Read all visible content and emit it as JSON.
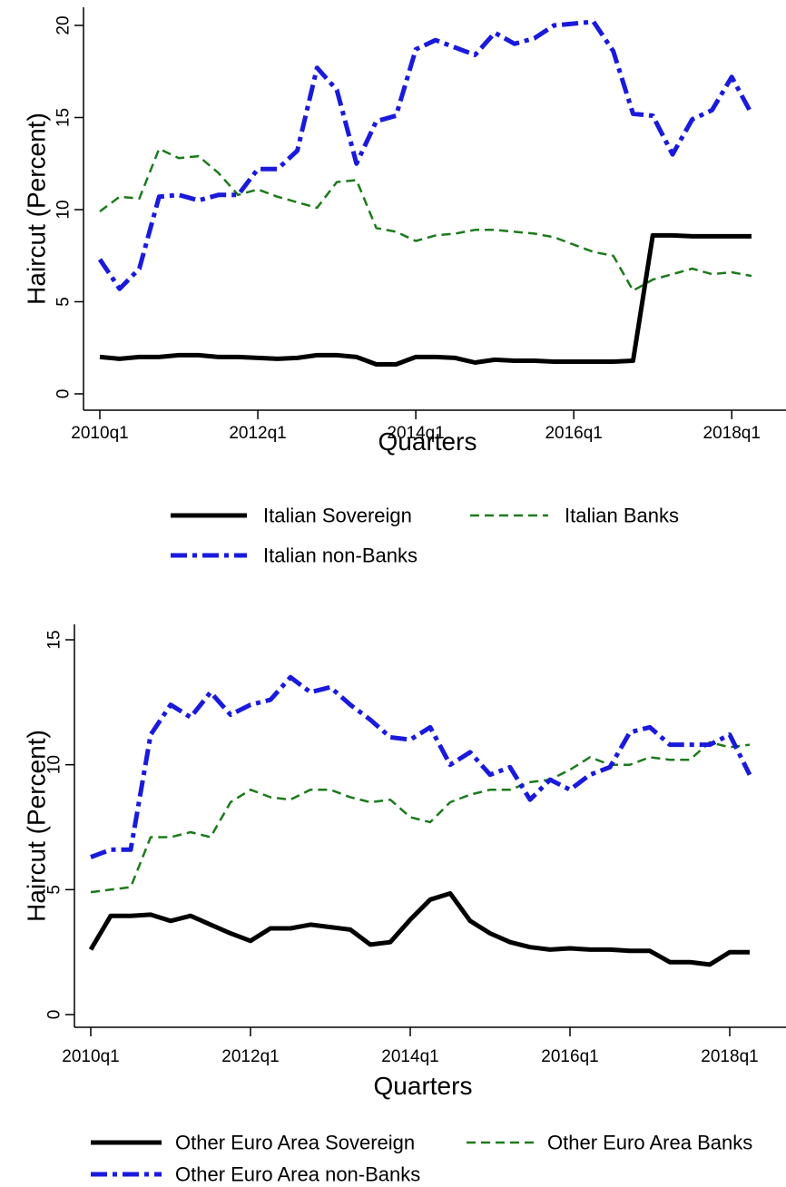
{
  "chart_data": [
    {
      "type": "line",
      "title": "",
      "xlabel": "Quarters",
      "ylabel": "Haircut (Percent)",
      "xlim": [
        "2010q1",
        "2018q2"
      ],
      "ylim": [
        0,
        20
      ],
      "yticks": [
        "0",
        "5",
        "10",
        "15",
        "20"
      ],
      "xticks": [
        "2010q1",
        "2012q1",
        "2014q1",
        "2016q1",
        "2018q1"
      ],
      "grid": false,
      "legend_position": "bottom",
      "x": [
        "2010q1",
        "2010q2",
        "2010q3",
        "2010q4",
        "2011q1",
        "2011q2",
        "2011q3",
        "2011q4",
        "2012q1",
        "2012q2",
        "2012q3",
        "2012q4",
        "2013q1",
        "2013q2",
        "2013q3",
        "2013q4",
        "2014q1",
        "2014q2",
        "2014q3",
        "2014q4",
        "2015q1",
        "2015q2",
        "2015q3",
        "2015q4",
        "2016q1",
        "2016q2",
        "2016q3",
        "2016q4",
        "2017q1",
        "2017q2",
        "2017q3",
        "2017q4",
        "2018q1",
        "2018q2"
      ],
      "series": [
        {
          "name": "Italian Sovereign",
          "color": "#000000",
          "line_style": "solid",
          "values": [
            2.0,
            1.9,
            2.0,
            2.0,
            2.1,
            2.1,
            2.0,
            2.0,
            1.95,
            1.9,
            1.95,
            2.1,
            2.1,
            2.0,
            1.6,
            1.6,
            2.0,
            2.0,
            1.95,
            1.7,
            1.85,
            1.8,
            1.8,
            1.75,
            1.75,
            1.75,
            1.75,
            1.8,
            8.6,
            8.6,
            8.55,
            8.55,
            8.55,
            8.55
          ]
        },
        {
          "name": "Italian Banks",
          "color": "#1a7a1a",
          "line_style": "dashed",
          "values": [
            9.9,
            10.7,
            10.6,
            13.3,
            12.8,
            12.9,
            12.0,
            10.8,
            11.1,
            10.7,
            10.4,
            10.1,
            11.5,
            11.6,
            9.0,
            8.8,
            8.3,
            8.6,
            8.7,
            8.9,
            8.9,
            8.8,
            8.7,
            8.5,
            8.1,
            7.7,
            7.5,
            5.6,
            6.2,
            6.5,
            6.8,
            6.5,
            6.6,
            6.4
          ]
        },
        {
          "name": "Italian non-Banks",
          "color": "#1a1adc",
          "line_style": "dashdot",
          "values": [
            7.3,
            5.7,
            6.8,
            10.7,
            10.8,
            10.5,
            10.8,
            10.8,
            12.2,
            12.2,
            13.2,
            17.7,
            16.5,
            12.5,
            14.8,
            15.1,
            18.7,
            19.2,
            18.8,
            18.4,
            19.6,
            19.0,
            19.3,
            20.0,
            20.1,
            20.2,
            18.6,
            15.2,
            15.1,
            13.0,
            14.9,
            15.4,
            17.2,
            15.2
          ]
        }
      ]
    },
    {
      "type": "line",
      "title": "",
      "xlabel": "Quarters",
      "ylabel": "Haircut (Percent)",
      "xlim": [
        "2010q1",
        "2018q2"
      ],
      "ylim": [
        0,
        15
      ],
      "yticks": [
        "0",
        "5",
        "10",
        "15"
      ],
      "xticks": [
        "2010q1",
        "2012q1",
        "2014q1",
        "2016q1",
        "2018q1"
      ],
      "grid": false,
      "legend_position": "bottom",
      "x": [
        "2010q1",
        "2010q2",
        "2010q3",
        "2010q4",
        "2011q1",
        "2011q2",
        "2011q3",
        "2011q4",
        "2012q1",
        "2012q2",
        "2012q3",
        "2012q4",
        "2013q1",
        "2013q2",
        "2013q3",
        "2013q4",
        "2014q1",
        "2014q2",
        "2014q3",
        "2014q4",
        "2015q1",
        "2015q2",
        "2015q3",
        "2015q4",
        "2016q1",
        "2016q2",
        "2016q3",
        "2016q4",
        "2017q1",
        "2017q2",
        "2017q3",
        "2017q4",
        "2018q1",
        "2018q2"
      ],
      "series": [
        {
          "name": "Other Euro Area Sovereign",
          "color": "#000000",
          "line_style": "solid",
          "values": [
            2.6,
            3.95,
            3.95,
            4.0,
            3.75,
            3.95,
            3.6,
            3.25,
            2.95,
            3.45,
            3.45,
            3.6,
            3.5,
            3.4,
            2.8,
            2.9,
            3.8,
            4.6,
            4.85,
            3.75,
            3.25,
            2.9,
            2.7,
            2.6,
            2.65,
            2.6,
            2.6,
            2.55,
            2.55,
            2.1,
            2.1,
            2.0,
            2.5,
            2.5
          ]
        },
        {
          "name": "Other Euro Area Banks",
          "color": "#1a7a1a",
          "line_style": "dashed",
          "values": [
            4.9,
            5.0,
            5.1,
            7.1,
            7.1,
            7.3,
            7.1,
            8.5,
            9.0,
            8.7,
            8.6,
            9.0,
            9.0,
            8.7,
            8.5,
            8.6,
            7.9,
            7.7,
            8.5,
            8.8,
            9.0,
            9.0,
            9.3,
            9.4,
            9.8,
            10.3,
            10.0,
            10.0,
            10.3,
            10.2,
            10.2,
            10.9,
            10.7,
            10.8
          ]
        },
        {
          "name": "Other Euro Area non-Banks",
          "color": "#1a1adc",
          "line_style": "dashdot",
          "values": [
            6.3,
            6.6,
            6.6,
            11.2,
            12.4,
            11.9,
            12.9,
            12.0,
            12.4,
            12.6,
            13.5,
            12.9,
            13.1,
            12.4,
            11.8,
            11.1,
            11.0,
            11.5,
            10.0,
            10.5,
            9.6,
            9.9,
            8.6,
            9.4,
            9.0,
            9.6,
            9.9,
            11.3,
            11.5,
            10.8,
            10.8,
            10.8,
            11.2,
            9.6
          ]
        }
      ]
    }
  ]
}
